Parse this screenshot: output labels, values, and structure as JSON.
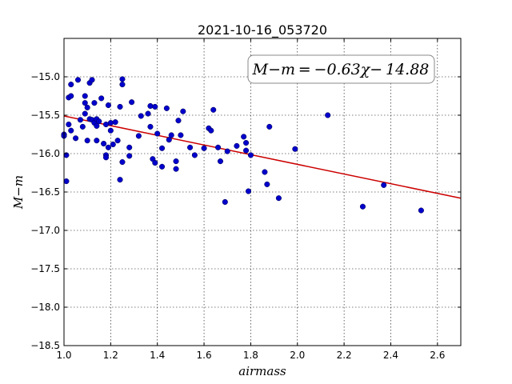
{
  "chart_data": {
    "type": "scatter",
    "title": "2021-10-16_053720",
    "xlabel": "airmass",
    "ylabel": "M−m",
    "xlim": [
      1.0,
      2.7
    ],
    "ylim": [
      -18.5,
      -14.5
    ],
    "y_inverted": true,
    "grid": true,
    "x_ticks": [
      "1.0",
      "1.2",
      "1.4",
      "1.6",
      "1.8",
      "2.0",
      "2.2",
      "2.4",
      "2.6"
    ],
    "y_ticks": [
      "−15.0",
      "−15.5",
      "−16.0",
      "−16.5",
      "−17.0",
      "−17.5",
      "−18.0",
      "−18.5"
    ],
    "annotation": "M−m = −0.63χ− 14.88",
    "fit": {
      "slope": -0.63,
      "intercept": -14.88,
      "color": "#cc0000"
    },
    "point_color": "#0000cc",
    "points": [
      [
        1.0,
        -15.75
      ],
      [
        1.0,
        -15.77
      ],
      [
        1.01,
        -16.02
      ],
      [
        1.01,
        -16.36
      ],
      [
        1.02,
        -15.27
      ],
      [
        1.02,
        -15.62
      ],
      [
        1.03,
        -15.25
      ],
      [
        1.03,
        -15.1
      ],
      [
        1.03,
        -15.7
      ],
      [
        1.05,
        -15.8
      ],
      [
        1.06,
        -15.04
      ],
      [
        1.07,
        -15.56
      ],
      [
        1.08,
        -15.65
      ],
      [
        1.09,
        -15.48
      ],
      [
        1.09,
        -15.25
      ],
      [
        1.09,
        -15.34
      ],
      [
        1.1,
        -15.4
      ],
      [
        1.1,
        -15.83
      ],
      [
        1.11,
        -15.55
      ],
      [
        1.11,
        -15.08
      ],
      [
        1.12,
        -15.04
      ],
      [
        1.12,
        -15.56
      ],
      [
        1.13,
        -15.6
      ],
      [
        1.13,
        -15.34
      ],
      [
        1.14,
        -15.55
      ],
      [
        1.14,
        -15.64
      ],
      [
        1.14,
        -15.83
      ],
      [
        1.15,
        -15.58
      ],
      [
        1.16,
        -15.28
      ],
      [
        1.17,
        -15.87
      ],
      [
        1.18,
        -16.02
      ],
      [
        1.18,
        -15.62
      ],
      [
        1.18,
        -16.05
      ],
      [
        1.19,
        -15.37
      ],
      [
        1.19,
        -15.92
      ],
      [
        1.2,
        -15.6
      ],
      [
        1.2,
        -15.7
      ],
      [
        1.21,
        -15.88
      ],
      [
        1.22,
        -15.59
      ],
      [
        1.23,
        -15.83
      ],
      [
        1.24,
        -16.34
      ],
      [
        1.24,
        -15.39
      ],
      [
        1.25,
        -15.03
      ],
      [
        1.25,
        -15.1
      ],
      [
        1.25,
        -16.11
      ],
      [
        1.28,
        -15.92
      ],
      [
        1.28,
        -16.03
      ],
      [
        1.29,
        -15.33
      ],
      [
        1.32,
        -15.77
      ],
      [
        1.33,
        -15.51
      ],
      [
        1.36,
        -15.48
      ],
      [
        1.37,
        -15.38
      ],
      [
        1.37,
        -15.65
      ],
      [
        1.38,
        -16.07
      ],
      [
        1.39,
        -16.12
      ],
      [
        1.39,
        -15.39
      ],
      [
        1.4,
        -15.74
      ],
      [
        1.42,
        -15.93
      ],
      [
        1.42,
        -16.17
      ],
      [
        1.44,
        -15.41
      ],
      [
        1.45,
        -15.82
      ],
      [
        1.46,
        -15.76
      ],
      [
        1.48,
        -16.2
      ],
      [
        1.48,
        -16.1
      ],
      [
        1.49,
        -15.57
      ],
      [
        1.5,
        -15.76
      ],
      [
        1.51,
        -15.45
      ],
      [
        1.54,
        -15.92
      ],
      [
        1.56,
        -16.02
      ],
      [
        1.6,
        -15.93
      ],
      [
        1.62,
        -15.67
      ],
      [
        1.63,
        -15.7
      ],
      [
        1.64,
        -15.43
      ],
      [
        1.66,
        -15.92
      ],
      [
        1.67,
        -16.1
      ],
      [
        1.69,
        -16.63
      ],
      [
        1.7,
        -15.97
      ],
      [
        1.74,
        -15.9
      ],
      [
        1.77,
        -15.78
      ],
      [
        1.78,
        -15.86
      ],
      [
        1.78,
        -15.96
      ],
      [
        1.79,
        -16.49
      ],
      [
        1.8,
        -16.02
      ],
      [
        1.86,
        -16.24
      ],
      [
        1.87,
        -16.4
      ],
      [
        1.88,
        -15.65
      ],
      [
        1.92,
        -16.58
      ],
      [
        1.99,
        -15.94
      ],
      [
        2.13,
        -15.5
      ],
      [
        2.28,
        -16.69
      ],
      [
        2.37,
        -16.41
      ],
      [
        2.53,
        -16.74
      ]
    ]
  }
}
